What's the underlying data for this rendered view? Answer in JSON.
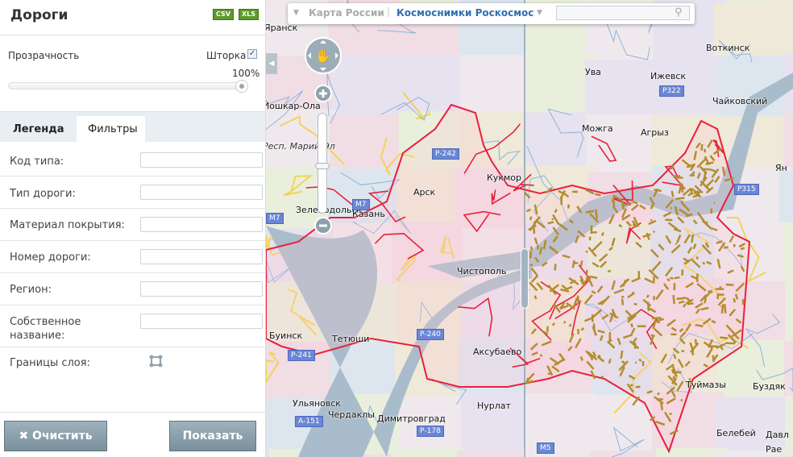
{
  "panel": {
    "title": "Дороги",
    "export": [
      "CSV",
      "XLS"
    ],
    "opacity_label": "Прозрачность",
    "curtain_label": "Шторка",
    "curtain_checked": true,
    "opacity_value": "100%",
    "opacity_percent": 100,
    "tabs": [
      {
        "label": "Легенда",
        "active": false
      },
      {
        "label": "Фильтры",
        "active": true
      }
    ],
    "filters": [
      {
        "label": "Код типа:",
        "value": ""
      },
      {
        "label": "Тип дороги:",
        "value": ""
      },
      {
        "label": "Материал покрытия:",
        "value": ""
      },
      {
        "label": "Номер дороги:",
        "value": ""
      },
      {
        "label": "Регион:",
        "value": ""
      },
      {
        "label": "Собственное название:",
        "value": ""
      }
    ],
    "bounds_label": "Границы слоя:",
    "clear_label": "Очистить",
    "show_label": "Показать"
  },
  "topbar": {
    "left_map": "Карта России",
    "right_map": "Космоснимки Роскосмос",
    "search_placeholder": ""
  },
  "map": {
    "region_label": "Респ. Марий-Эл",
    "cities": [
      "Яранск",
      "Йошкар-Ола",
      "Зеленодольск",
      "Казань",
      "Арск",
      "Кукмор",
      "Чистополь",
      "Буинск",
      "Тетюши",
      "Ульяновск",
      "Чердаклы",
      "Димитровград",
      "Нурлат",
      "Аксубаево",
      "Ува",
      "Ижевск",
      "Воткинск",
      "Чайковский",
      "Можга",
      "Агрыз",
      "Туймазы",
      "Буздяк",
      "Белебей",
      "Давл",
      "Рае",
      "Ян"
    ],
    "roads": [
      "Р-242",
      "М7",
      "М7",
      "Р-240",
      "Р-241",
      "А-151",
      "Р-178",
      "Р322",
      "Р315",
      "М5"
    ],
    "colors": {
      "boundary": "#e8203c",
      "roads_layer": "#b38d2e",
      "water": "#a9bccb",
      "accent": "#2f6fb0"
    }
  }
}
